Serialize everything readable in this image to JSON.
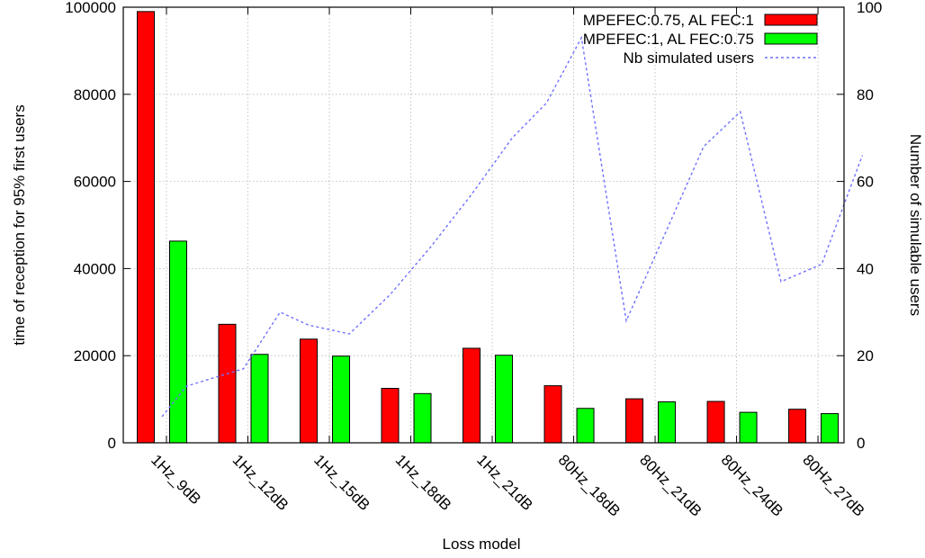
{
  "chart_data": {
    "type": "bar",
    "categories": [
      "1Hz_9dB",
      "1Hz_12dB",
      "1Hz_15dB",
      "1Hz_18dB",
      "1Hz_21dB",
      "80Hz_18dB",
      "80Hz_21dB",
      "80Hz_24dB",
      "80Hz_27dB"
    ],
    "series": [
      {
        "name": "MPEFEC:0.75,   AL FEC:1",
        "axis": "left",
        "type": "bar",
        "color": "#ff0000",
        "values": [
          99000,
          27200,
          23800,
          12500,
          21700,
          13100,
          10100,
          9500,
          7700
        ]
      },
      {
        "name": "MPEFEC:1,   AL FEC:0.75",
        "axis": "left",
        "type": "bar",
        "color": "#00ff00",
        "values": [
          46300,
          20300,
          19900,
          11300,
          20100,
          7900,
          9400,
          7000,
          6700
        ]
      }
    ],
    "line_series": {
      "name": "Nb simulated users",
      "axis": "right",
      "type": "line",
      "style": "dashed",
      "color": "#7070ff",
      "x": [
        0.2,
        0.5,
        0.85,
        1.2,
        1.65,
        2.0,
        2.5,
        3.0,
        3.5,
        4.0,
        4.5,
        4.92,
        5.35,
        5.9,
        6.4,
        6.85,
        7.3,
        7.8,
        8.3,
        8.8
      ],
      "y": [
        6,
        13,
        15,
        17,
        30,
        27,
        25,
        34,
        45,
        57,
        70,
        78,
        93,
        28,
        49,
        68,
        76,
        37,
        41,
        66
      ]
    },
    "xlabel": "Loss model",
    "ylabel": "time of reception for 95% first users",
    "y2label": "Number of simulable users",
    "ylim": [
      0,
      100000
    ],
    "y2lim": [
      0,
      100
    ],
    "yticks": [
      "0",
      "20000",
      "40000",
      "60000",
      "80000",
      "100000"
    ],
    "y2ticks": [
      "0",
      "20",
      "40",
      "60",
      "80",
      "100"
    ],
    "grid": true,
    "legend": "top-right"
  }
}
